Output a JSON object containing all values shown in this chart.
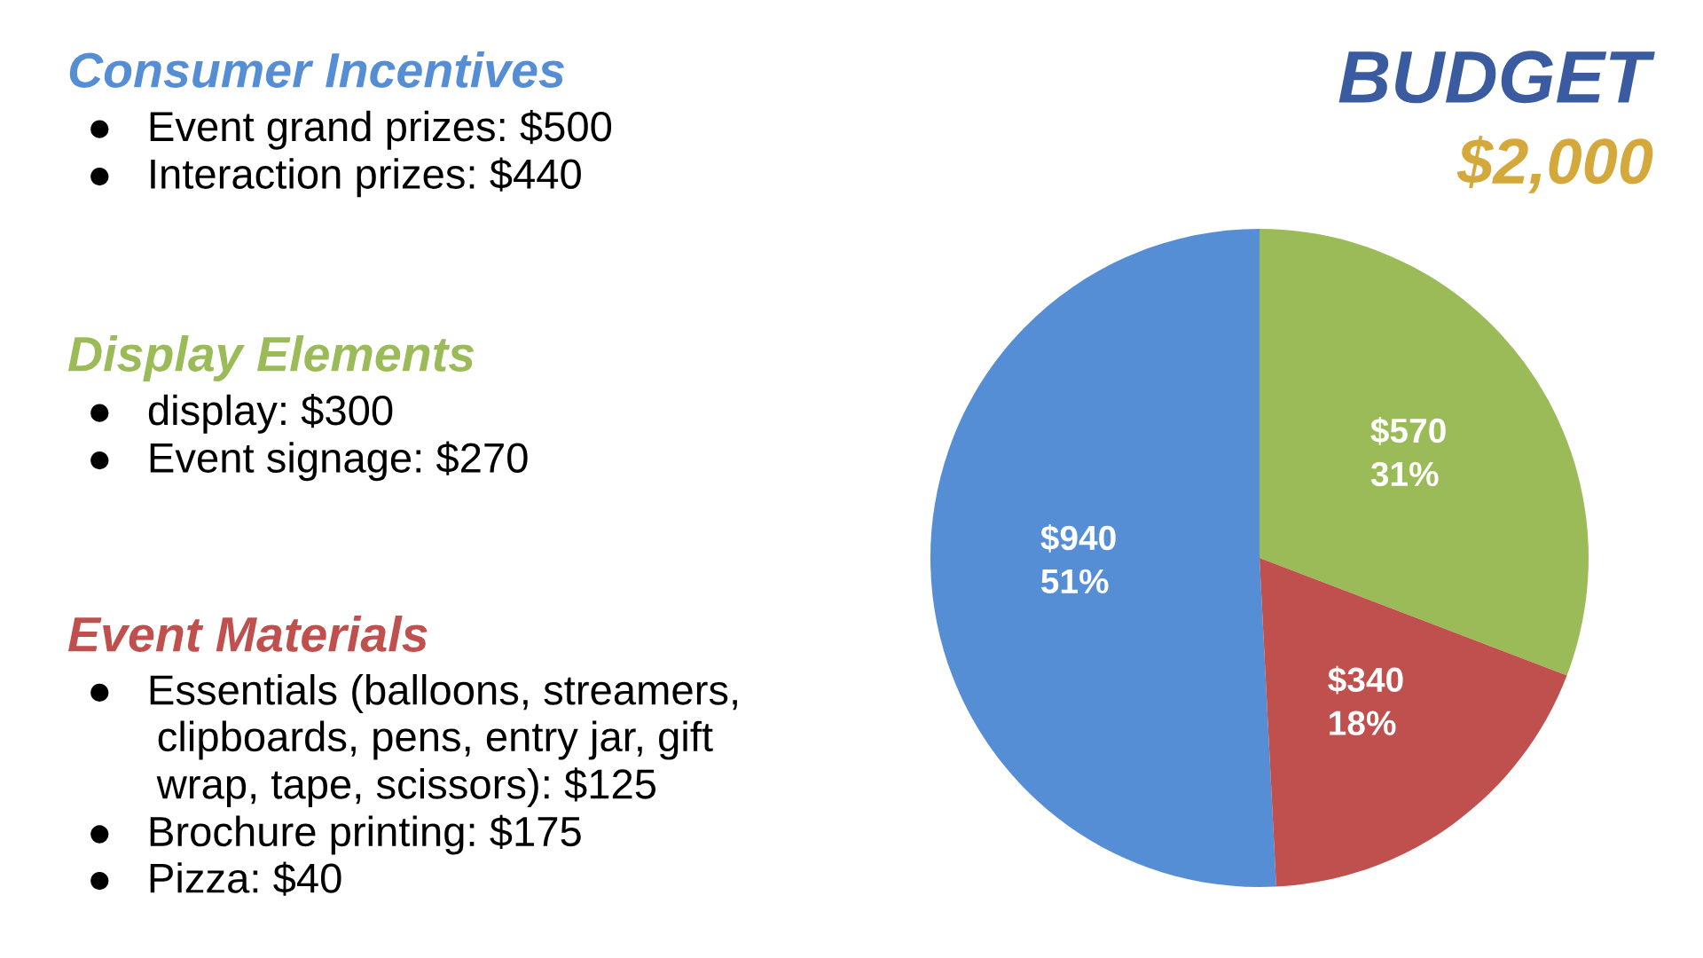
{
  "chart_data": {
    "type": "pie",
    "title": "BUDGET",
    "subtitle": "$2,000",
    "categories": [
      null,
      null,
      null
    ],
    "values": [
      940,
      570,
      340
    ],
    "colors": [
      "#558ed5",
      "#9bbb59",
      "#c0504d"
    ],
    "value_labels": [
      "$940\n51%",
      "$570\n31%",
      "$340\n18%"
    ],
    "annotations": [
      "Consumer Incentives",
      "●   Event grand prizes: $500\n●   Interaction prizes: $440",
      "Display Elements",
      "●   display: $300\n●   Event signage: $270",
      "Event Materials",
      "●   Essentials (balloons, streamers,\n      clipboards, pens, entry jar, gift\n      wrap, tape, scissors): $125\n●   Brochure printing: $175\n●   Pizza: $40"
    ]
  }
}
